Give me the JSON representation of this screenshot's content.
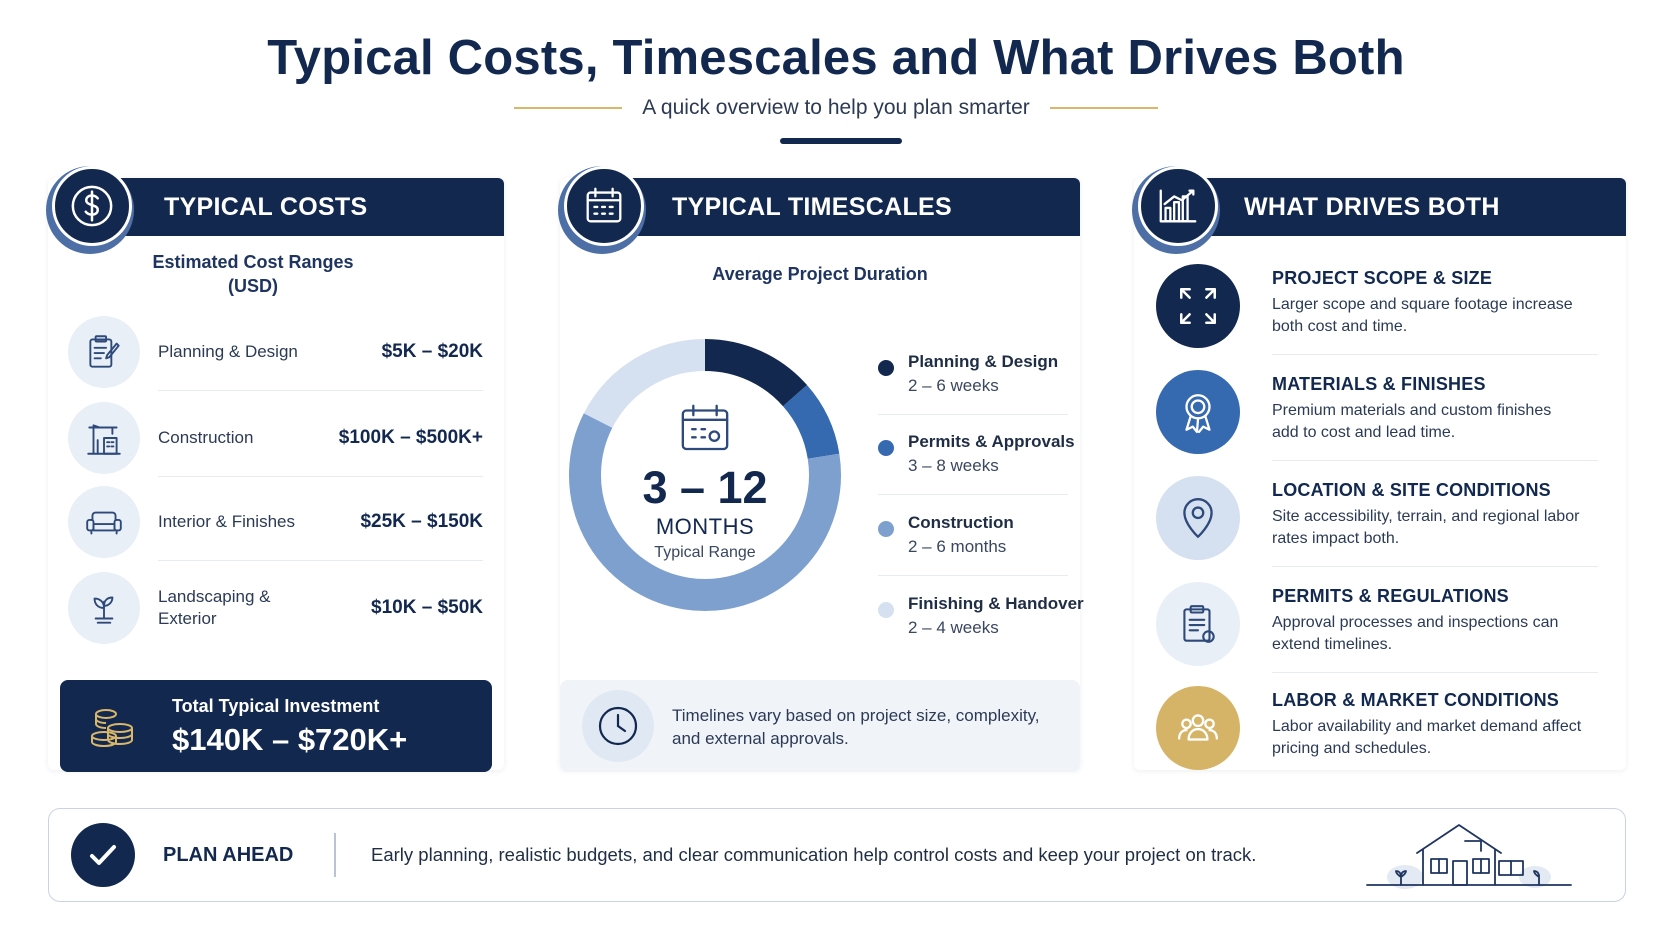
{
  "header": {
    "title": "Typical Costs, Timescales and What Drives Both",
    "subtitle": "A quick overview to help you plan smarter"
  },
  "costs": {
    "heading": "TYPICAL COSTS",
    "icon": "dollar-icon",
    "subheading_line1": "Estimated Cost Ranges",
    "subheading_line2": "(USD)",
    "items": [
      {
        "label": "Planning & Design",
        "value": "$5K – $20K",
        "icon": "clipboard-pen-icon"
      },
      {
        "label": "Construction",
        "value": "$100K – $500K+",
        "icon": "crane-building-icon"
      },
      {
        "label": "Interior & Finishes",
        "value": "$25K – $150K",
        "icon": "sofa-icon"
      },
      {
        "label": "Landscaping & Exterior",
        "value": "$10K – $50K",
        "icon": "plant-icon"
      }
    ],
    "total_label": "Total Typical Investment",
    "total_value": "$140K – $720K+",
    "total_icon": "coins-icon"
  },
  "timescales": {
    "heading": "TYPICAL TIMESCALES",
    "icon": "calendar-icon",
    "subheading": "Average Project Duration",
    "center_value": "3 – 12",
    "center_unit": "MONTHS",
    "center_caption": "Typical Range",
    "phases": [
      {
        "name": "Planning & Design",
        "duration": "2 – 6 weeks",
        "color": "#12284f"
      },
      {
        "name": "Permits & Approvals",
        "duration": "3 – 8 weeks",
        "color": "#3569b0"
      },
      {
        "name": "Construction",
        "duration": "2 – 6 months",
        "color": "#7ea0cf"
      },
      {
        "name": "Finishing & Handover",
        "duration": "2 – 4 weeks",
        "color": "#d5e1f0"
      }
    ],
    "note": "Timelines vary based on project size, complexity, and external approvals.",
    "note_icon": "clock-icon"
  },
  "drivers": {
    "heading": "WHAT DRIVES BOTH",
    "icon": "bar-chart-icon",
    "items": [
      {
        "title": "PROJECT SCOPE & SIZE",
        "desc": "Larger scope and square footage increase both cost and time.",
        "icon": "expand-icon"
      },
      {
        "title": "MATERIALS & FINISHES",
        "desc": "Premium materials and custom finishes add to cost and lead time.",
        "icon": "award-ribbon-icon"
      },
      {
        "title": "LOCATION & SITE CONDITIONS",
        "desc": "Site accessibility, terrain, and regional labor rates impact both.",
        "icon": "location-pin-icon"
      },
      {
        "title": "PERMITS & REGULATIONS",
        "desc": "Approval processes and inspections can extend timelines.",
        "icon": "checklist-icon"
      },
      {
        "title": "LABOR & MARKET CONDITIONS",
        "desc": "Labor availability and market demand affect pricing and schedules.",
        "icon": "people-group-icon"
      }
    ]
  },
  "banner": {
    "label": "PLAN AHEAD",
    "text": "Early planning, realistic budgets, and clear communication help control costs and keep your project on track.",
    "icon": "checkmark-icon",
    "illustration": "house-icon"
  },
  "colors": {
    "navy": "#12284f",
    "gold": "#d9b66a",
    "labor_circle": "#d6b467",
    "materials_circle": "#3569b0"
  }
}
